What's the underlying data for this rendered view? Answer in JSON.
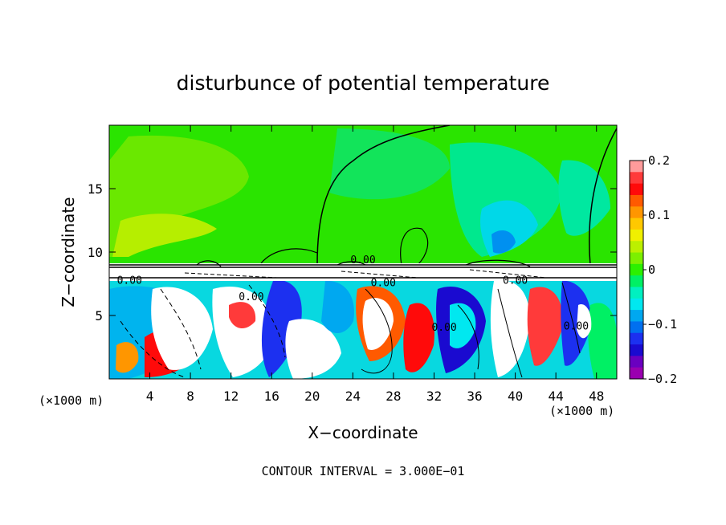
{
  "chart_data": {
    "type": "heatmap",
    "title": "disturbunce of potential temperature",
    "xlabel": "X−coordinate",
    "ylabel": "Z−coordinate",
    "x_unit": "(×1000 m)",
    "z_unit": "(×1000 m)",
    "footer": "CONTOUR INTERVAL = 3.000E−01",
    "xlim": [
      0,
      50
    ],
    "ylim": [
      0,
      20
    ],
    "x_ticks": [
      4,
      8,
      12,
      16,
      20,
      24,
      28,
      32,
      36,
      40,
      44,
      48
    ],
    "x_tick_labels": [
      "4",
      "8",
      "12",
      "16",
      "20",
      "24",
      "28",
      "32",
      "36",
      "40",
      "44",
      "48"
    ],
    "y_ticks": [
      5,
      10,
      15
    ],
    "y_tick_labels": [
      "5",
      "10",
      "15"
    ],
    "colorbar": {
      "range": [
        -0.2,
        0.2
      ],
      "tick_values": [
        0.2,
        0.1,
        0,
        -0.1,
        -0.2
      ],
      "tick_labels": [
        "0.2",
        "0.1",
        "0",
        "−0.1",
        "−0.2"
      ],
      "colors": [
        "#ff9b9b",
        "#ff3a3a",
        "#ff0a0a",
        "#ff5a00",
        "#ff9600",
        "#ffc800",
        "#f0f000",
        "#bcf000",
        "#7cf000",
        "#2cf000",
        "#00f064",
        "#00f0c0",
        "#00e8f0",
        "#00a8f0",
        "#0070f0",
        "#1c30f0",
        "#1a0ad0",
        "#6a00c0",
        "#9a00b0"
      ]
    },
    "contour_interval": 0.3,
    "contour_labels": [
      {
        "text": "0.00",
        "x": 2.0,
        "z": 7.5
      },
      {
        "text": "0.00",
        "x": 14.0,
        "z": 6.2
      },
      {
        "text": "0.00",
        "x": 25.0,
        "z": 9.1
      },
      {
        "text": "0.00",
        "x": 27.0,
        "z": 7.3
      },
      {
        "text": "0.00",
        "x": 33.0,
        "z": 3.8
      },
      {
        "text": "0.00",
        "x": 40.0,
        "z": 7.5
      },
      {
        "text": "0.00",
        "x": 46.0,
        "z": 3.9
      }
    ],
    "cloud_top_z": 9.0
  }
}
